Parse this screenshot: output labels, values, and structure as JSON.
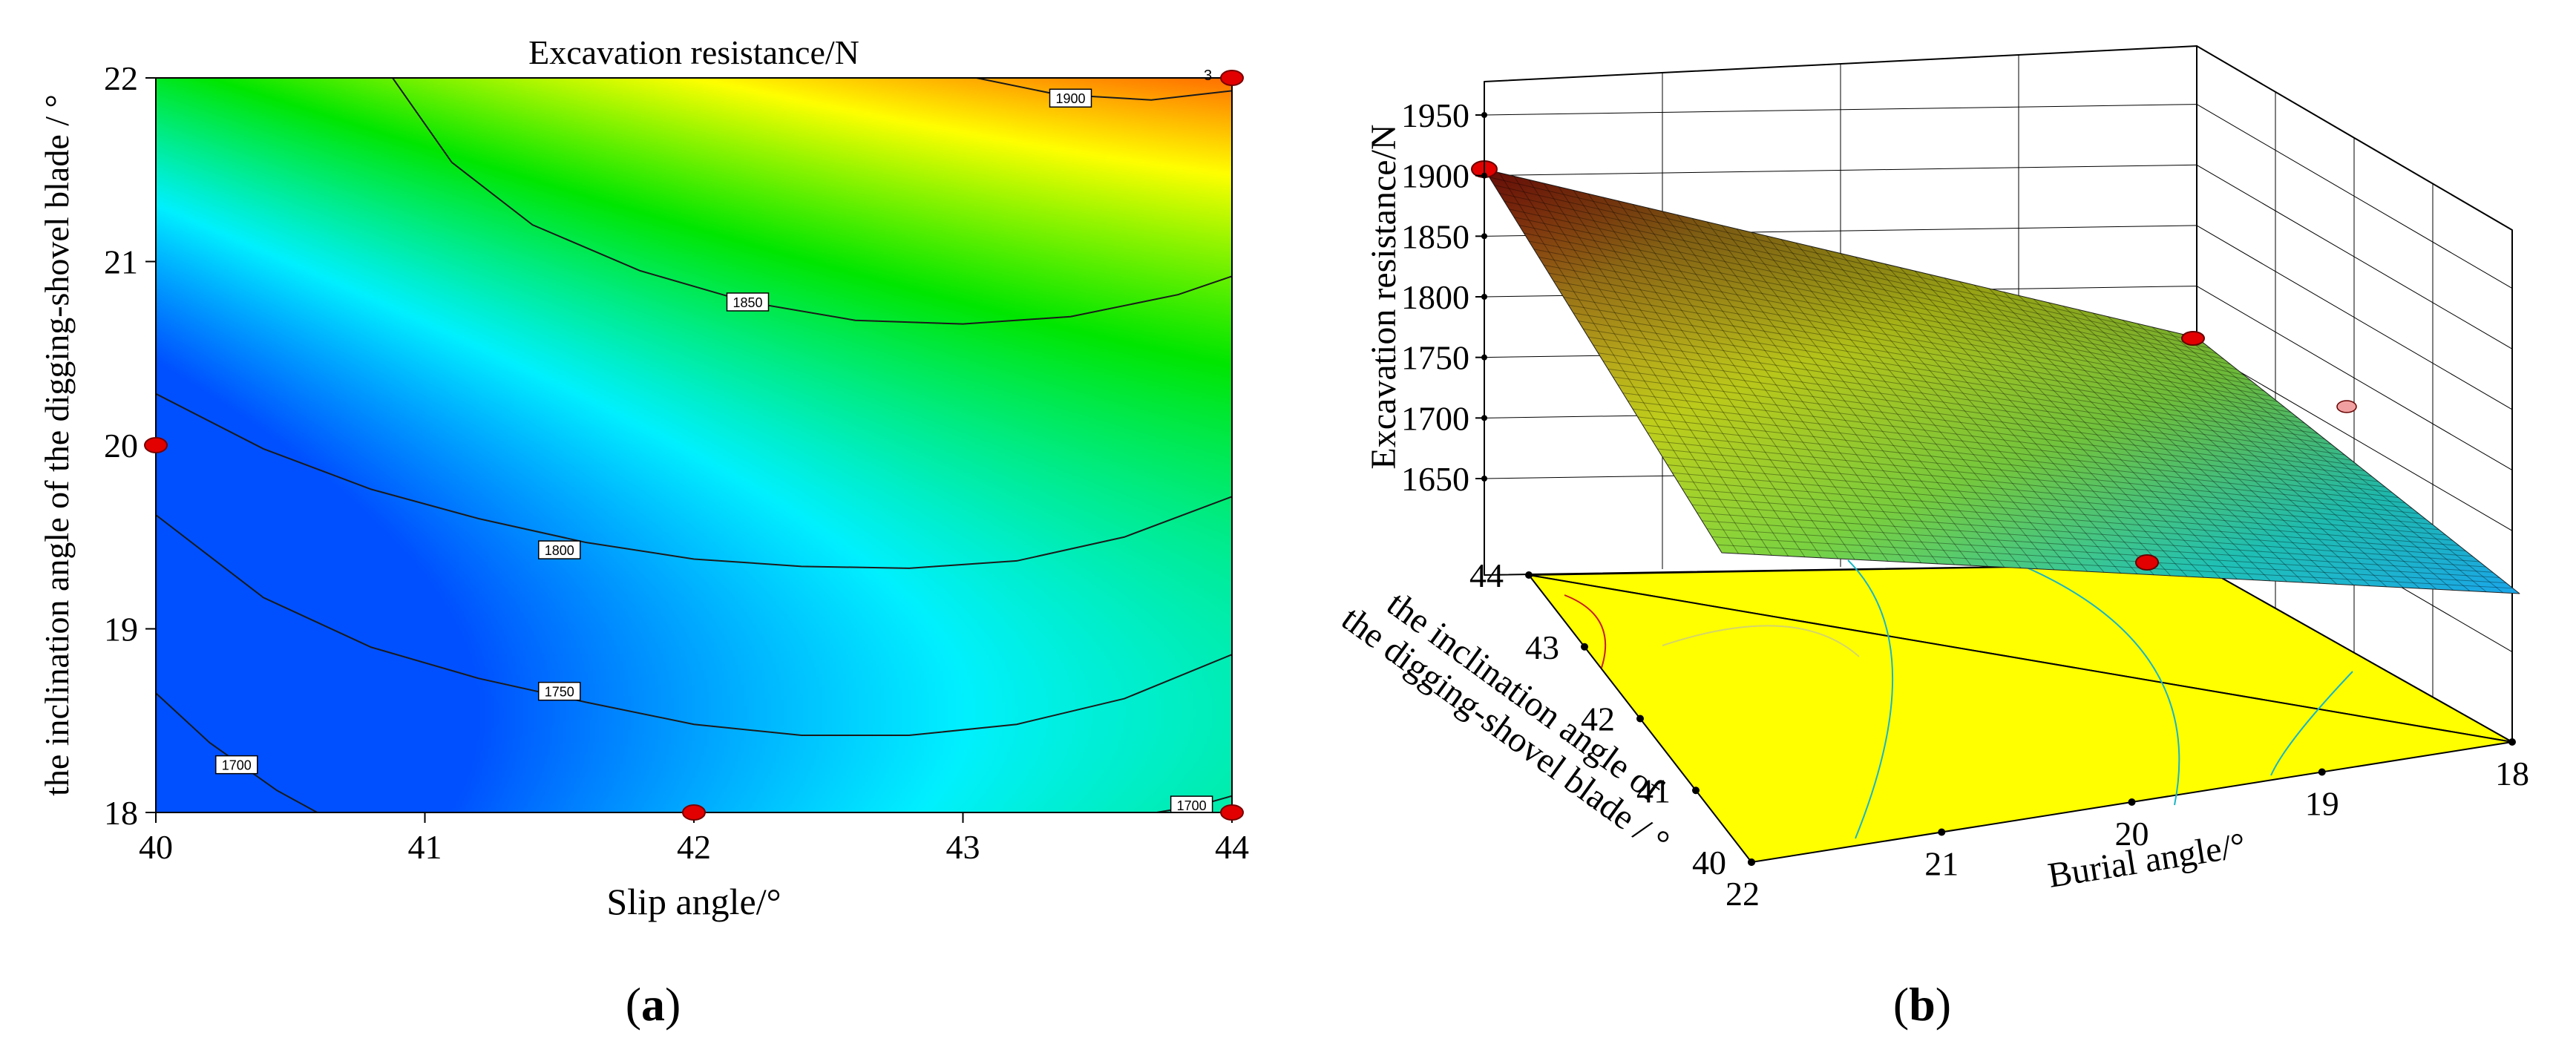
{
  "chart_data": [
    {
      "type": "heatmap",
      "title": "Excavation resistance/N",
      "panel_label": "a",
      "xlabel": "Slip angle/°",
      "ylabel": "the inclination angle of the digging-shovel blade / °",
      "xlim": [
        40,
        44
      ],
      "ylim": [
        18,
        22
      ],
      "x_ticks": [
        "40",
        "41",
        "42",
        "43",
        "44"
      ],
      "y_ticks": [
        "18",
        "19",
        "20",
        "21",
        "22"
      ],
      "contours": [
        {
          "level": "1700",
          "points": [
            [
              40,
              18.65
            ],
            [
              40.2,
              18.38
            ],
            [
              40.45,
              18.12
            ],
            [
              40.6,
              18
            ]
          ]
        },
        {
          "level": "1750",
          "points": [
            [
              40,
              19.62
            ],
            [
              40.4,
              19.17
            ],
            [
              40.8,
              18.9
            ],
            [
              41.2,
              18.73
            ],
            [
              41.6,
              18.6
            ],
            [
              42,
              18.48
            ],
            [
              42.4,
              18.42
            ],
            [
              42.8,
              18.42
            ],
            [
              43.2,
              18.48
            ],
            [
              43.6,
              18.62
            ],
            [
              44,
              18.86
            ]
          ]
        },
        {
          "level": "1800",
          "points": [
            [
              40,
              20.28
            ],
            [
              40.4,
              19.98
            ],
            [
              40.8,
              19.76
            ],
            [
              41.2,
              19.6
            ],
            [
              41.6,
              19.47
            ],
            [
              42,
              19.38
            ],
            [
              42.4,
              19.34
            ],
            [
              42.8,
              19.33
            ],
            [
              43.2,
              19.37
            ],
            [
              43.6,
              19.5
            ],
            [
              44,
              19.72
            ]
          ]
        },
        {
          "level": "1850",
          "points": [
            [
              40.88,
              22
            ],
            [
              41.1,
              21.54
            ],
            [
              41.4,
              21.2
            ],
            [
              41.8,
              20.95
            ],
            [
              42.2,
              20.78
            ],
            [
              42.6,
              20.68
            ],
            [
              43,
              20.66
            ],
            [
              43.4,
              20.7
            ],
            [
              43.8,
              20.82
            ],
            [
              44,
              20.92
            ]
          ]
        },
        {
          "level": "1900",
          "points": [
            [
              43.05,
              22
            ],
            [
              43.35,
              21.91
            ],
            [
              43.7,
              21.88
            ],
            [
              44,
              21.93
            ]
          ]
        },
        {
          "level": "1700",
          "points": [
            [
              43.72,
              18
            ],
            [
              43.88,
              18.04
            ],
            [
              44,
              18.09
            ]
          ]
        }
      ],
      "design_points": [
        [
          40,
          20
        ],
        [
          42,
          18
        ],
        [
          44,
          18
        ],
        [
          44,
          22
        ]
      ],
      "design_point_labels": [
        "3"
      ],
      "colors": {
        "low": "#0000ff",
        "mid": "#00e600",
        "high": "#ff0000",
        "contour": "#1a1a1a",
        "point": "#e30000"
      }
    },
    {
      "type": "surface",
      "panel_label": "b",
      "zlabel": "Excavation resistance/N",
      "xlabel": "Burial angle/°",
      "ylabel": "the inclination angle of the digging-shovel blade / °",
      "z_ticks": [
        "1650",
        "1700",
        "1750",
        "1800",
        "1850",
        "1900",
        "1950"
      ],
      "x_ticks": [
        "22",
        "21",
        "20",
        "19",
        "18"
      ],
      "y_ticks": [
        "40",
        "41",
        "42",
        "43",
        "44"
      ],
      "zlim": [
        1650,
        1950
      ],
      "corner_values": {
        "near_left": 1660,
        "far_left": 1900,
        "far_right": 1650,
        "near_right": 1900
      },
      "colors": {
        "floor": "#ffff00",
        "floor_contour": "#1ab5c2",
        "point": "#e30000",
        "grid": "#000000"
      }
    }
  ]
}
